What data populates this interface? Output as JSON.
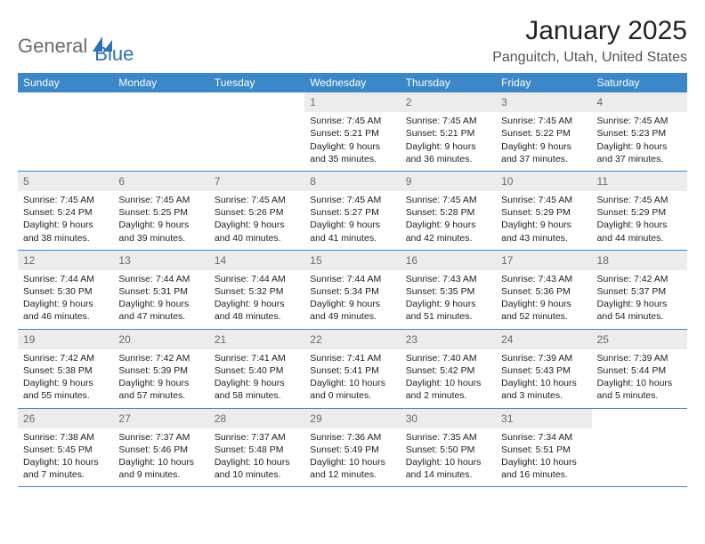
{
  "logo": {
    "text1": "General",
    "text2": "Blue"
  },
  "title": "January 2025",
  "location": "Panguitch, Utah, United States",
  "colors": {
    "header_bg": "#3b87c8",
    "header_text": "#ffffff",
    "daynum_bg": "#ececec",
    "daynum_text": "#6a6a6a",
    "body_text": "#222222",
    "rule": "#3b87c8",
    "logo_gray": "#6b6b6b",
    "logo_blue": "#2a72b5"
  },
  "weekdays": [
    "Sunday",
    "Monday",
    "Tuesday",
    "Wednesday",
    "Thursday",
    "Friday",
    "Saturday"
  ],
  "weeks": [
    [
      {
        "n": "",
        "sr": "",
        "ss": "",
        "dl": ""
      },
      {
        "n": "",
        "sr": "",
        "ss": "",
        "dl": ""
      },
      {
        "n": "",
        "sr": "",
        "ss": "",
        "dl": ""
      },
      {
        "n": "1",
        "sr": "Sunrise: 7:45 AM",
        "ss": "Sunset: 5:21 PM",
        "dl": "Daylight: 9 hours and 35 minutes."
      },
      {
        "n": "2",
        "sr": "Sunrise: 7:45 AM",
        "ss": "Sunset: 5:21 PM",
        "dl": "Daylight: 9 hours and 36 minutes."
      },
      {
        "n": "3",
        "sr": "Sunrise: 7:45 AM",
        "ss": "Sunset: 5:22 PM",
        "dl": "Daylight: 9 hours and 37 minutes."
      },
      {
        "n": "4",
        "sr": "Sunrise: 7:45 AM",
        "ss": "Sunset: 5:23 PM",
        "dl": "Daylight: 9 hours and 37 minutes."
      }
    ],
    [
      {
        "n": "5",
        "sr": "Sunrise: 7:45 AM",
        "ss": "Sunset: 5:24 PM",
        "dl": "Daylight: 9 hours and 38 minutes."
      },
      {
        "n": "6",
        "sr": "Sunrise: 7:45 AM",
        "ss": "Sunset: 5:25 PM",
        "dl": "Daylight: 9 hours and 39 minutes."
      },
      {
        "n": "7",
        "sr": "Sunrise: 7:45 AM",
        "ss": "Sunset: 5:26 PM",
        "dl": "Daylight: 9 hours and 40 minutes."
      },
      {
        "n": "8",
        "sr": "Sunrise: 7:45 AM",
        "ss": "Sunset: 5:27 PM",
        "dl": "Daylight: 9 hours and 41 minutes."
      },
      {
        "n": "9",
        "sr": "Sunrise: 7:45 AM",
        "ss": "Sunset: 5:28 PM",
        "dl": "Daylight: 9 hours and 42 minutes."
      },
      {
        "n": "10",
        "sr": "Sunrise: 7:45 AM",
        "ss": "Sunset: 5:29 PM",
        "dl": "Daylight: 9 hours and 43 minutes."
      },
      {
        "n": "11",
        "sr": "Sunrise: 7:45 AM",
        "ss": "Sunset: 5:29 PM",
        "dl": "Daylight: 9 hours and 44 minutes."
      }
    ],
    [
      {
        "n": "12",
        "sr": "Sunrise: 7:44 AM",
        "ss": "Sunset: 5:30 PM",
        "dl": "Daylight: 9 hours and 46 minutes."
      },
      {
        "n": "13",
        "sr": "Sunrise: 7:44 AM",
        "ss": "Sunset: 5:31 PM",
        "dl": "Daylight: 9 hours and 47 minutes."
      },
      {
        "n": "14",
        "sr": "Sunrise: 7:44 AM",
        "ss": "Sunset: 5:32 PM",
        "dl": "Daylight: 9 hours and 48 minutes."
      },
      {
        "n": "15",
        "sr": "Sunrise: 7:44 AM",
        "ss": "Sunset: 5:34 PM",
        "dl": "Daylight: 9 hours and 49 minutes."
      },
      {
        "n": "16",
        "sr": "Sunrise: 7:43 AM",
        "ss": "Sunset: 5:35 PM",
        "dl": "Daylight: 9 hours and 51 minutes."
      },
      {
        "n": "17",
        "sr": "Sunrise: 7:43 AM",
        "ss": "Sunset: 5:36 PM",
        "dl": "Daylight: 9 hours and 52 minutes."
      },
      {
        "n": "18",
        "sr": "Sunrise: 7:42 AM",
        "ss": "Sunset: 5:37 PM",
        "dl": "Daylight: 9 hours and 54 minutes."
      }
    ],
    [
      {
        "n": "19",
        "sr": "Sunrise: 7:42 AM",
        "ss": "Sunset: 5:38 PM",
        "dl": "Daylight: 9 hours and 55 minutes."
      },
      {
        "n": "20",
        "sr": "Sunrise: 7:42 AM",
        "ss": "Sunset: 5:39 PM",
        "dl": "Daylight: 9 hours and 57 minutes."
      },
      {
        "n": "21",
        "sr": "Sunrise: 7:41 AM",
        "ss": "Sunset: 5:40 PM",
        "dl": "Daylight: 9 hours and 58 minutes."
      },
      {
        "n": "22",
        "sr": "Sunrise: 7:41 AM",
        "ss": "Sunset: 5:41 PM",
        "dl": "Daylight: 10 hours and 0 minutes."
      },
      {
        "n": "23",
        "sr": "Sunrise: 7:40 AM",
        "ss": "Sunset: 5:42 PM",
        "dl": "Daylight: 10 hours and 2 minutes."
      },
      {
        "n": "24",
        "sr": "Sunrise: 7:39 AM",
        "ss": "Sunset: 5:43 PM",
        "dl": "Daylight: 10 hours and 3 minutes."
      },
      {
        "n": "25",
        "sr": "Sunrise: 7:39 AM",
        "ss": "Sunset: 5:44 PM",
        "dl": "Daylight: 10 hours and 5 minutes."
      }
    ],
    [
      {
        "n": "26",
        "sr": "Sunrise: 7:38 AM",
        "ss": "Sunset: 5:45 PM",
        "dl": "Daylight: 10 hours and 7 minutes."
      },
      {
        "n": "27",
        "sr": "Sunrise: 7:37 AM",
        "ss": "Sunset: 5:46 PM",
        "dl": "Daylight: 10 hours and 9 minutes."
      },
      {
        "n": "28",
        "sr": "Sunrise: 7:37 AM",
        "ss": "Sunset: 5:48 PM",
        "dl": "Daylight: 10 hours and 10 minutes."
      },
      {
        "n": "29",
        "sr": "Sunrise: 7:36 AM",
        "ss": "Sunset: 5:49 PM",
        "dl": "Daylight: 10 hours and 12 minutes."
      },
      {
        "n": "30",
        "sr": "Sunrise: 7:35 AM",
        "ss": "Sunset: 5:50 PM",
        "dl": "Daylight: 10 hours and 14 minutes."
      },
      {
        "n": "31",
        "sr": "Sunrise: 7:34 AM",
        "ss": "Sunset: 5:51 PM",
        "dl": "Daylight: 10 hours and 16 minutes."
      },
      {
        "n": "",
        "sr": "",
        "ss": "",
        "dl": ""
      }
    ]
  ]
}
